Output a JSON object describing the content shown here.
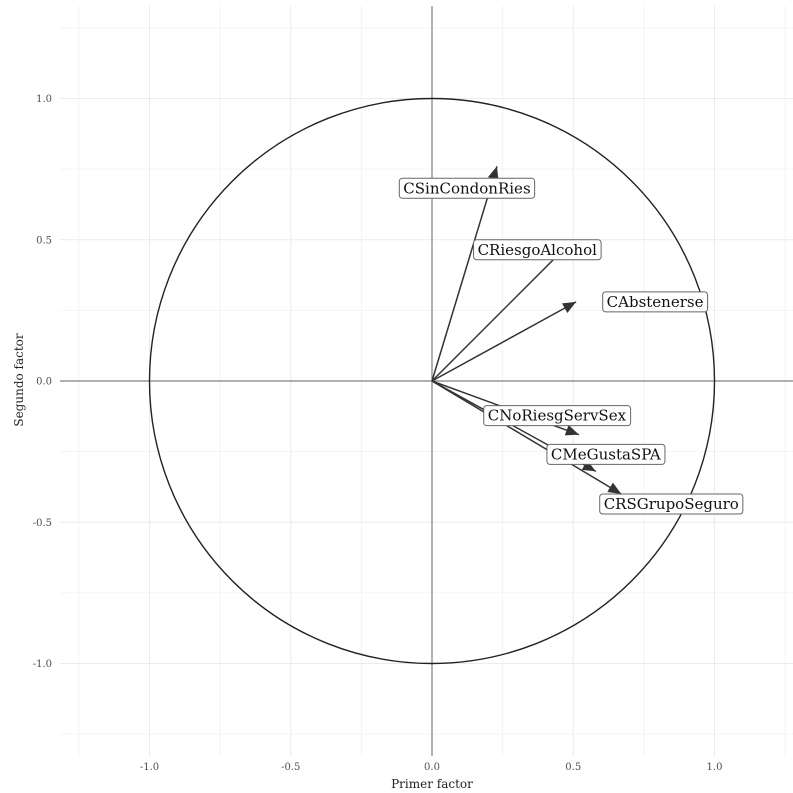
{
  "chart_data": {
    "type": "scatter",
    "title": "",
    "xlabel": "Primer factor",
    "ylabel": "Segundo factor",
    "xlim": [
      -1.3,
      1.3
    ],
    "ylim": [
      -1.3,
      1.3
    ],
    "grid": true,
    "unit_circle": true,
    "x_ticks": [
      -1.0,
      -0.5,
      0.0,
      0.5,
      1.0
    ],
    "y_ticks": [
      -1.0,
      -0.5,
      0.0,
      0.5,
      1.0
    ],
    "x_tick_labels": [
      "-1.0",
      "-0.5",
      "0.0",
      "0.5",
      "1.0"
    ],
    "y_tick_labels": [
      "-1.0",
      "-0.5",
      "0.0",
      "0.5",
      "1.0"
    ],
    "vectors": [
      {
        "label": "CSinCondonRies",
        "x": 0.23,
        "y": 0.76
      },
      {
        "label": "CRiesgoAlcohol",
        "x": 0.5,
        "y": 0.5
      },
      {
        "label": "CAbstenerse",
        "x": 0.51,
        "y": 0.28
      },
      {
        "label": "CNoRiesgServSex",
        "x": 0.52,
        "y": -0.19
      },
      {
        "label": "CMeGustaSPA",
        "x": 0.58,
        "y": -0.32
      },
      {
        "label": "CRSGrupoSeguro",
        "x": 0.67,
        "y": -0.4
      }
    ]
  },
  "colors": {
    "background": "#ffffff",
    "grid": "#ebebeb",
    "axis_line": "#7f7f7f",
    "circle": "#222222",
    "arrow": "#333333",
    "label_border": "#666666"
  }
}
